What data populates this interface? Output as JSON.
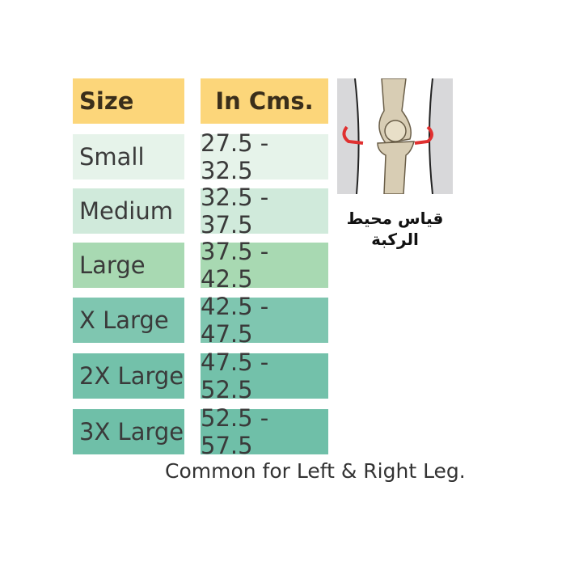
{
  "header": {
    "size": "Size",
    "cms": "In Cms."
  },
  "rows": [
    {
      "size": "Small",
      "range": "27.5 - 32.5",
      "color": "#e6f3ea"
    },
    {
      "size": "Medium",
      "range": "32.5 - 37.5",
      "color": "#d0eadb"
    },
    {
      "size": "Large",
      "range": "37.5 - 42.5",
      "color": "#a8d9b2"
    },
    {
      "size": "X Large",
      "range": "42.5 - 47.5",
      "color": "#7fc6b0"
    },
    {
      "size": "2X Large",
      "range": "47.5 - 52.5",
      "color": "#73c1aa"
    },
    {
      "size": "3X Large",
      "range": "52.5 - 57.5",
      "color": "#6fbfa8"
    }
  ],
  "image": {
    "icon": "knee-joint-illustration",
    "caption_line1": "قياس محيط",
    "caption_line2": "الركبة"
  },
  "footer": "Common for Left & Right Leg."
}
